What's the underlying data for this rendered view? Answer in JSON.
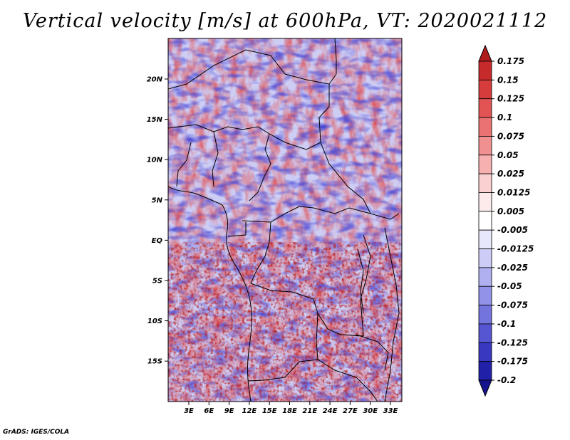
{
  "title": "Vertical velocity [m/s] at 600hPa, VT: 2020021112",
  "credit": "GrADS: IGES/COLA",
  "map": {
    "lon_ticks": [
      "3E",
      "6E",
      "9E",
      "12E",
      "15E",
      "18E",
      "21E",
      "24E",
      "27E",
      "30E",
      "33E"
    ],
    "lat_ticks": [
      "20N",
      "15N",
      "10N",
      "5N",
      "EQ",
      "5S",
      "10S",
      "15S"
    ]
  },
  "colorbar": {
    "labels": [
      "0.175",
      "0.15",
      "0.125",
      "0.1",
      "0.075",
      "0.05",
      "0.025",
      "0.0125",
      "0.005",
      "-0.005",
      "-0.0125",
      "-0.025",
      "-0.05",
      "-0.075",
      "-0.1",
      "-0.125",
      "-0.175",
      "-0.2"
    ],
    "colors": [
      "#b01c1c",
      "#c62a2a",
      "#d63c3c",
      "#e25454",
      "#ea7272",
      "#f09090",
      "#f6b0b0",
      "#fad0d0",
      "#fdeaea",
      "#ffffff",
      "#e8e8fc",
      "#ccccf6",
      "#b0b0f0",
      "#9292e8",
      "#7474de",
      "#5656d2",
      "#3838c0",
      "#2020a8",
      "#14148e"
    ]
  }
}
